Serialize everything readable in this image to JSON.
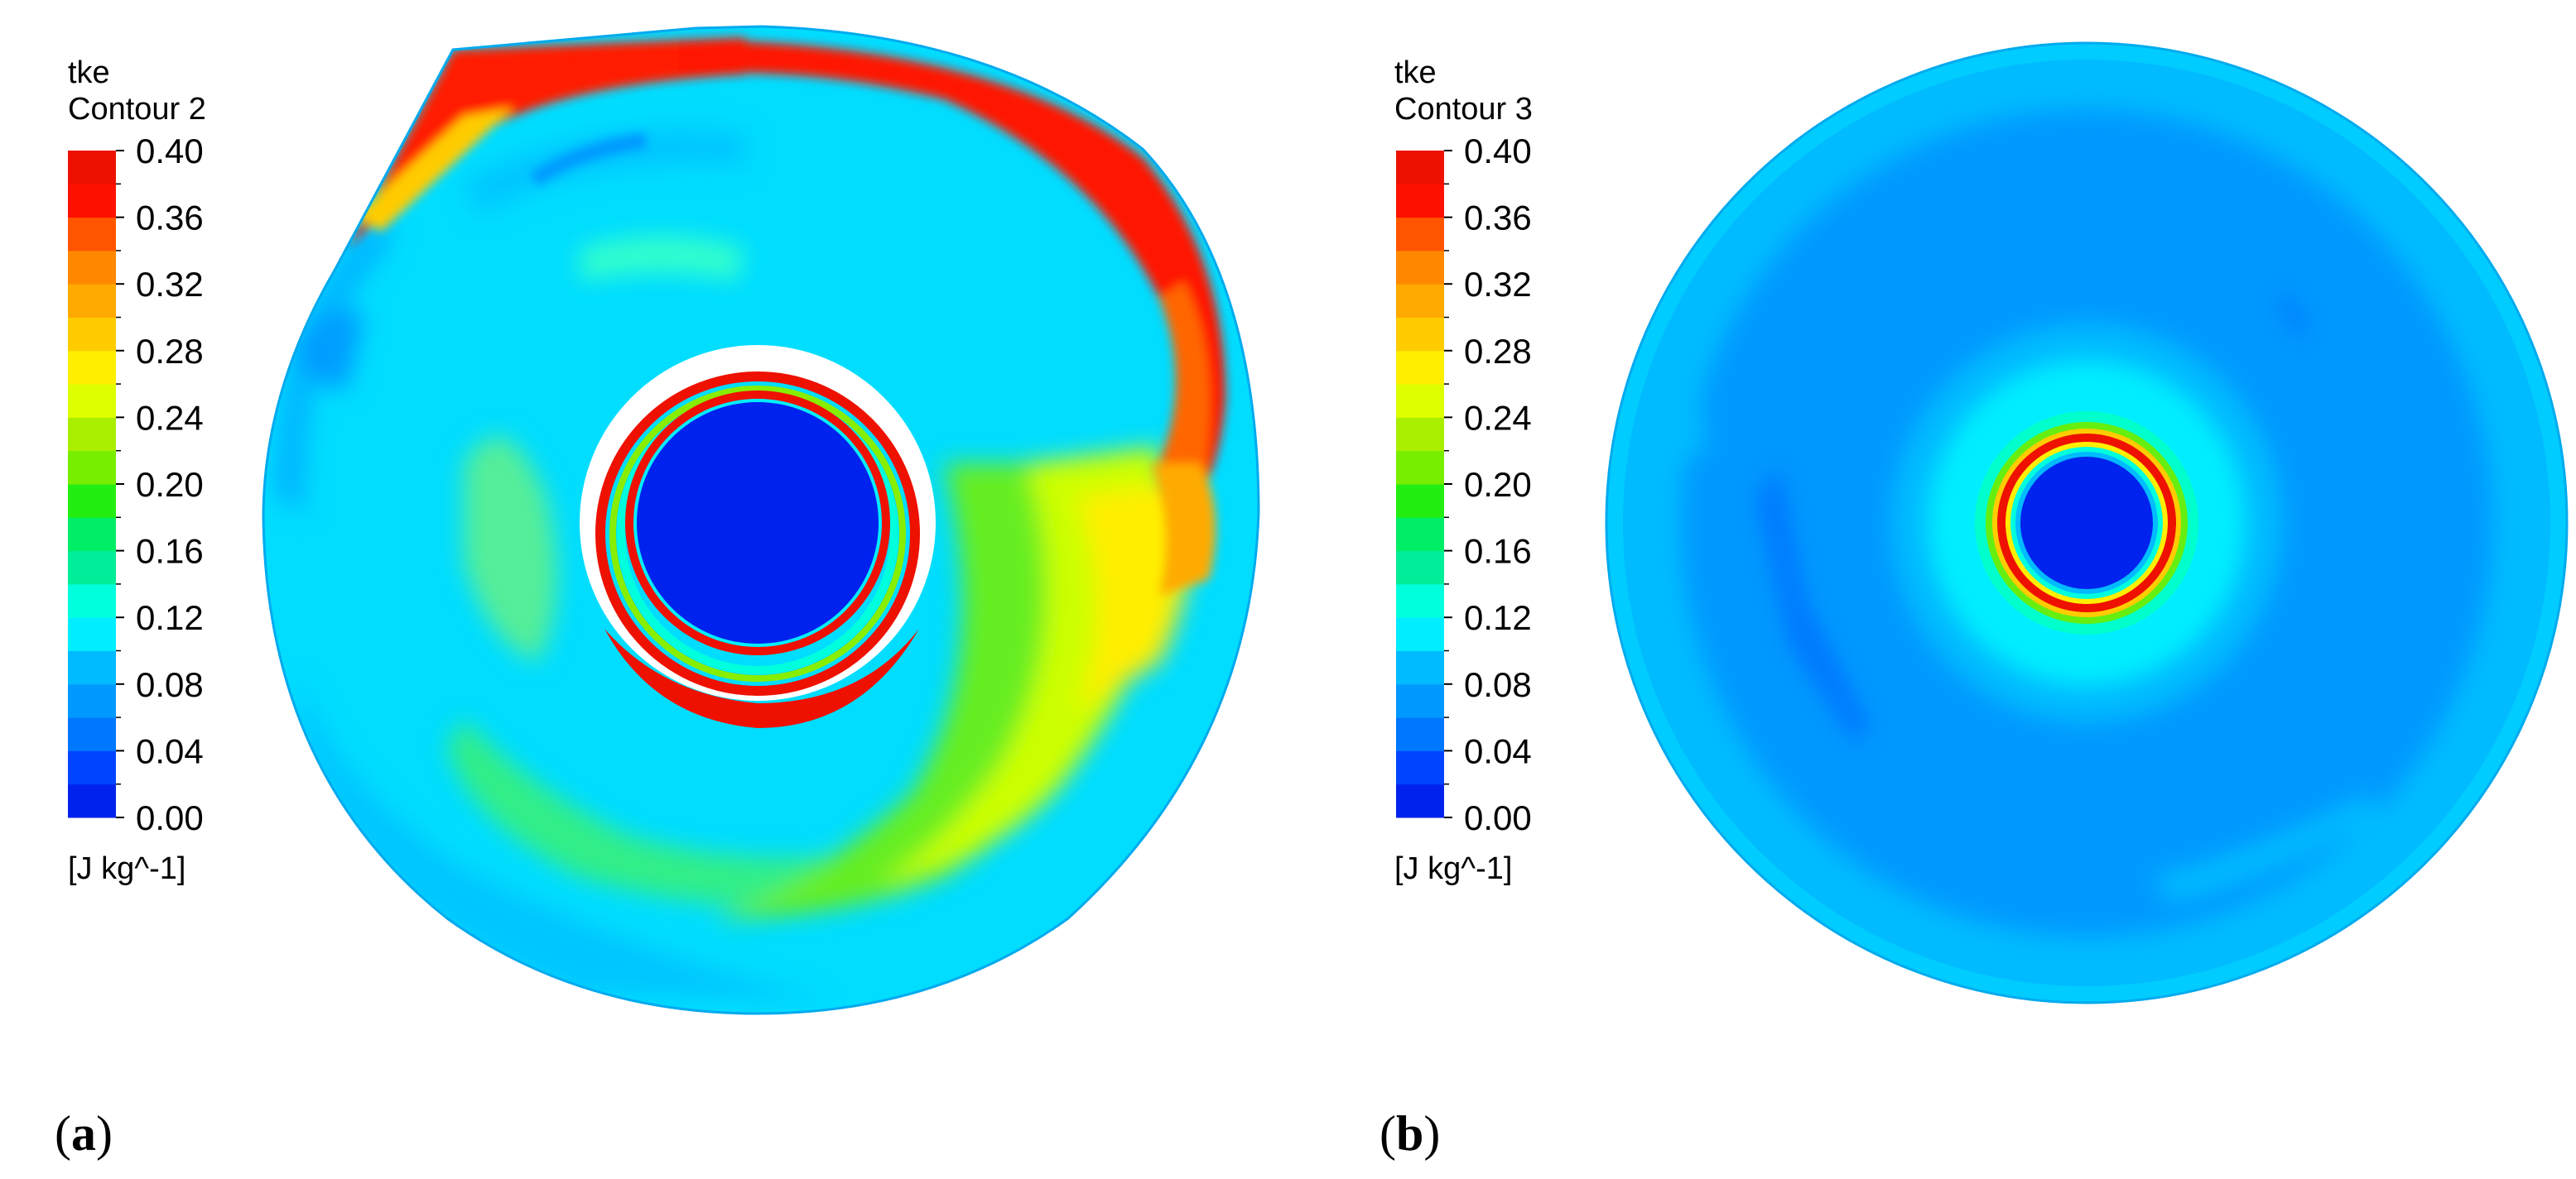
{
  "colormap": [
    "#0022ee",
    "#0044ff",
    "#0077ff",
    "#0099ff",
    "#00bbff",
    "#00eeff",
    "#00ffdd",
    "#00ee99",
    "#00ee66",
    "#22ee11",
    "#77ee00",
    "#aaee00",
    "#ddff00",
    "#ffee00",
    "#ffcc00",
    "#ffaa00",
    "#ff8800",
    "#ff5500",
    "#ff1100",
    "#ee1100"
  ],
  "panels": [
    {
      "letter": "a",
      "variable": "tke",
      "contour_name": "Contour 2",
      "units": "[J kg^-1]",
      "ticks": [
        "0.40",
        "0.36",
        "0.32",
        "0.28",
        "0.24",
        "0.20",
        "0.16",
        "0.12",
        "0.08",
        "0.04",
        "0.00"
      ],
      "range": [
        0.0,
        0.4
      ]
    },
    {
      "letter": "b",
      "variable": "tke",
      "contour_name": "Contour 3",
      "units": "[J kg^-1]",
      "ticks": [
        "0.40",
        "0.36",
        "0.32",
        "0.28",
        "0.24",
        "0.20",
        "0.16",
        "0.12",
        "0.08",
        "0.04",
        "0.00"
      ],
      "range": [
        0.0,
        0.4
      ]
    }
  ]
}
